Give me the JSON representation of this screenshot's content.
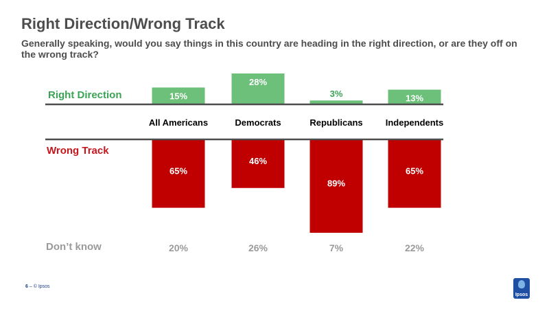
{
  "title": "Right Direction/Wrong Track",
  "subtitle": "Generally speaking, would  you say things in this country are heading in the right direction, or are they off on the wrong track?",
  "footer": {
    "page": "6",
    "dash": "–",
    "copyright": "© Ipsos"
  },
  "logo_text": "Ipsos",
  "colors": {
    "right": "#6cc07a",
    "right_label": "#3ba356",
    "wrong": "#c00000",
    "dont_know": "#9a9a9a",
    "rule": "#4d4d4d"
  },
  "chart_data": {
    "type": "bar",
    "categories": [
      "All Americans",
      "Democrats",
      "Republicans",
      "Independents"
    ],
    "series": [
      {
        "name": "Right Direction",
        "values": [
          15,
          28,
          3,
          13
        ],
        "labels": [
          "15%",
          "28%",
          "3%",
          "13%"
        ]
      },
      {
        "name": "Wrong Track",
        "values": [
          65,
          46,
          89,
          65
        ],
        "labels": [
          "65%",
          "46%",
          "89%",
          "65%"
        ]
      },
      {
        "name": "Don’t know",
        "values": [
          20,
          26,
          7,
          22
        ],
        "labels": [
          "20%",
          "26%",
          "7%",
          "22%"
        ]
      }
    ],
    "ylim": [
      0,
      100
    ],
    "grid": false,
    "legend": "left"
  }
}
